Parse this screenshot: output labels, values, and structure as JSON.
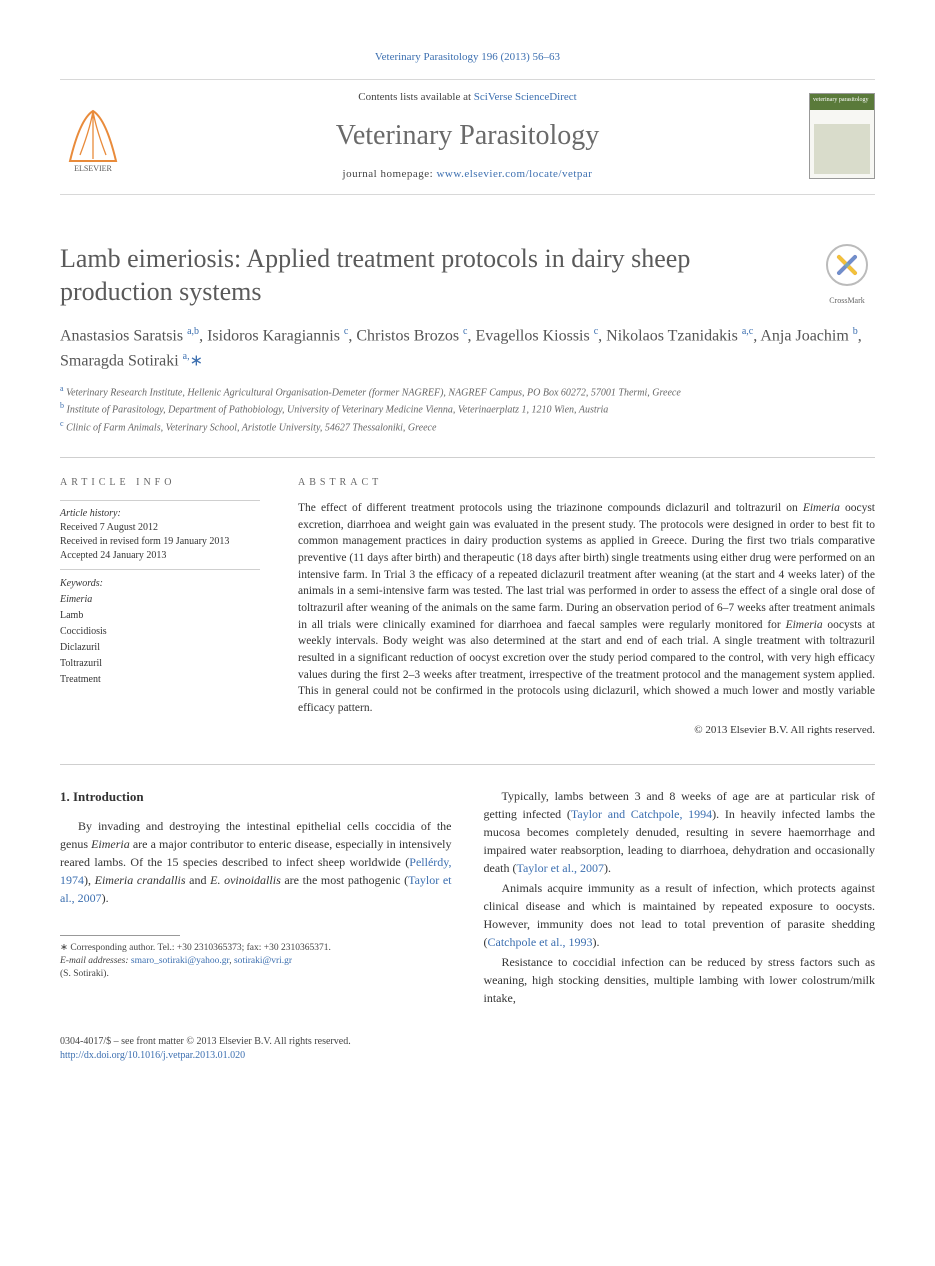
{
  "topCitation": "Veterinary Parasitology 196 (2013) 56–63",
  "masthead": {
    "contentsPrefix": "Contents lists available at ",
    "contentsLink": "SciVerse ScienceDirect",
    "journal": "Veterinary Parasitology",
    "homepagePrefix": "journal homepage: ",
    "homepageUrl": "www.elsevier.com/locate/vetpar",
    "publisher": "ELSEVIER",
    "coverText": "veterinary parasitology"
  },
  "article": {
    "title": "Lamb eimeriosis: Applied treatment protocols in dairy sheep production systems",
    "crossmark": "CrossMark"
  },
  "authors_html": "Anastasios Saratsis <sup>a,b</sup>, Isidoros Karagiannis <sup>c</sup>, Christos Brozos <sup>c</sup>, Evagellos Kiossis <sup>c</sup>, Nikolaos Tzanidakis <sup>a,c</sup>, Anja Joachim <sup>b</sup>, Smaragda Sotiraki <sup>a,</sup><span class=\"star\">∗</span>",
  "affiliations": [
    {
      "key": "a",
      "text": "Veterinary Research Institute, Hellenic Agricultural Organisation-Demeter (former NAGREF), NAGREF Campus, PO Box 60272, 57001 Thermi, Greece"
    },
    {
      "key": "b",
      "text": "Institute of Parasitology, Department of Pathobiology, University of Veterinary Medicine Vienna, Veterinaerplatz 1, 1210 Wien, Austria"
    },
    {
      "key": "c",
      "text": "Clinic of Farm Animals, Veterinary School, Aristotle University, 54627 Thessaloniki, Greece"
    }
  ],
  "articleInfo": {
    "heading": "article info",
    "historyHead": "Article history:",
    "history": [
      "Received 7 August 2012",
      "Received in revised form 19 January 2013",
      "Accepted 24 January 2013"
    ],
    "keywordsHead": "Keywords:",
    "keywords": [
      "Eimeria",
      "Lamb",
      "Coccidiosis",
      "Diclazuril",
      "Toltrazuril",
      "Treatment"
    ]
  },
  "abstract": {
    "heading": "abstract",
    "text_html": "The effect of different treatment protocols using the triazinone compounds diclazuril and toltrazuril on <em>Eimeria</em> oocyst excretion, diarrhoea and weight gain was evaluated in the present study. The protocols were designed in order to best fit to common management practices in dairy production systems as applied in Greece. During the first two trials comparative preventive (11 days after birth) and therapeutic (18 days after birth) single treatments using either drug were performed on an intensive farm. In Trial 3 the efficacy of a repeated diclazuril treatment after weaning (at the start and 4 weeks later) of the animals in a semi-intensive farm was tested. The last trial was performed in order to assess the effect of a single oral dose of toltrazuril after weaning of the animals on the same farm. During an observation period of 6–7 weeks after treatment animals in all trials were clinically examined for diarrhoea and faecal samples were regularly monitored for <em>Eimeria</em> oocysts at weekly intervals. Body weight was also determined at the start and end of each trial. A single treatment with toltrazuril resulted in a significant reduction of oocyst excretion over the study period compared to the control, with very high efficacy values during the first 2–3 weeks after treatment, irrespective of the treatment protocol and the management system applied. This in general could not be confirmed in the protocols using diclazuril, which showed a much lower and mostly variable efficacy pattern.",
    "copyright": "© 2013 Elsevier B.V. All rights reserved."
  },
  "section1": {
    "heading": "1.  Introduction",
    "left_paras_html": [
      "By invading and destroying the intestinal epithelial cells coccidia of the genus <em>Eimeria</em> are a major contributor to enteric disease, especially in intensively reared lambs. Of the 15 species described to infect sheep worldwide (<span class=\"ref\">Pellérdy, 1974</span>), <em>Eimeria crandallis</em> and <em>E. ovinoidallis</em> are the most pathogenic (<span class=\"ref\">Taylor et al., 2007</span>)."
    ],
    "right_paras_html": [
      "Typically, lambs between 3 and 8 weeks of age are at particular risk of getting infected (<span class=\"ref\">Taylor and Catchpole, 1994</span>). In heavily infected lambs the mucosa becomes completely denuded, resulting in severe haemorrhage and impaired water reabsorption, leading to diarrhoea, dehydration and occasionally death (<span class=\"ref\">Taylor et al., 2007</span>).",
      "Animals acquire immunity as a result of infection, which protects against clinical disease and which is maintained by repeated exposure to oocysts. However, immunity does not lead to total prevention of parasite shedding (<span class=\"ref\">Catchpole et al., 1993</span>).",
      "Resistance to coccidial infection can be reduced by stress factors such as weaning, high stocking densities, multiple lambing with lower colostrum/milk intake,"
    ]
  },
  "correspondence": {
    "star": "∗",
    "text": "Corresponding author. Tel.: +30 2310365373; fax: +30 2310365371.",
    "emailLabel": "E-mail addresses:",
    "emails": [
      "smaro_sotiraki@yahoo.gr",
      "sotiraki@vri.gr"
    ],
    "whom": "(S. Sotiraki)."
  },
  "footer": {
    "line1": "0304-4017/$ – see front matter © 2013 Elsevier B.V. All rights reserved.",
    "doi": "http://dx.doi.org/10.1016/j.vetpar.2013.01.020"
  },
  "colors": {
    "link": "#3c6fb0",
    "rule": "#cfcfcf",
    "text": "#333333",
    "muted": "#666666"
  }
}
